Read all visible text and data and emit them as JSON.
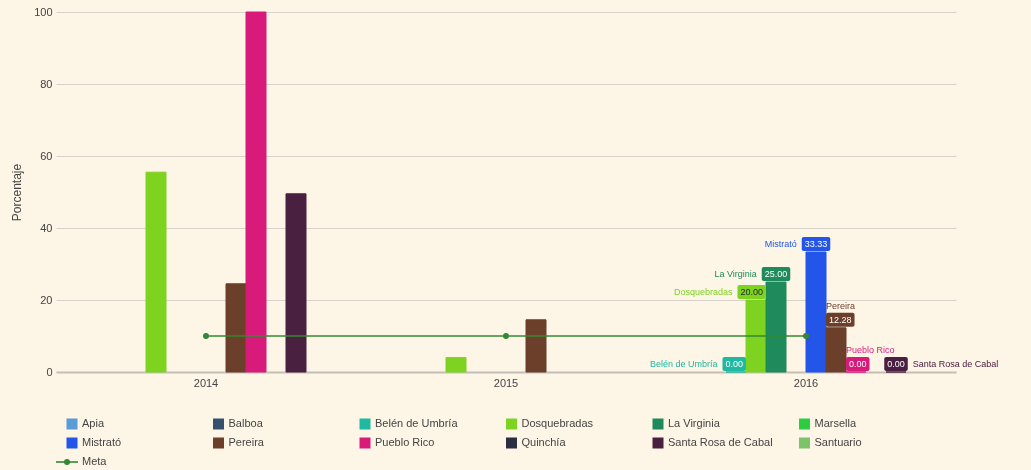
{
  "chart_data": {
    "type": "bar",
    "ylabel": "Porcentaje",
    "categories": [
      "2014",
      "2015",
      "2016"
    ],
    "series": [
      {
        "name": "Apia",
        "color": "#5b9bd5",
        "values": [
          null,
          null,
          null
        ]
      },
      {
        "name": "Balboa",
        "color": "#34506e",
        "values": [
          null,
          null,
          null
        ]
      },
      {
        "name": "Belén de Umbría",
        "color": "#1fb8a0",
        "values": [
          null,
          null,
          0
        ],
        "value_labels": [
          null,
          null,
          "0.00"
        ]
      },
      {
        "name": "Dosquebradas",
        "color": "#7ed321",
        "values": [
          55.5,
          4,
          20
        ],
        "value_labels": [
          null,
          null,
          "20.00"
        ]
      },
      {
        "name": "La Virginia",
        "color": "#1f8a5b",
        "values": [
          null,
          null,
          25
        ],
        "value_labels": [
          null,
          null,
          "25.00"
        ]
      },
      {
        "name": "Marsella",
        "color": "#2ecc40",
        "values": [
          null,
          null,
          null
        ]
      },
      {
        "name": "Mistrató",
        "color": "#2255e8",
        "values": [
          null,
          null,
          33.33
        ],
        "value_labels": [
          null,
          null,
          "33.33"
        ]
      },
      {
        "name": "Pereira",
        "color": "#6b3f2a",
        "values": [
          24.5,
          14.5,
          12.28
        ],
        "value_labels": [
          null,
          null,
          "12.28"
        ]
      },
      {
        "name": "Pueblo Rico",
        "color": "#d81b7a",
        "values": [
          100,
          null,
          0
        ],
        "value_labels": [
          null,
          null,
          "0.00"
        ]
      },
      {
        "name": "Quinchía",
        "color": "#2b2d42",
        "values": [
          null,
          null,
          null
        ]
      },
      {
        "name": "Santa Rosa de Cabal",
        "color": "#4a2040",
        "values": [
          49.5,
          null,
          0
        ],
        "value_labels": [
          null,
          null,
          "0.00"
        ]
      },
      {
        "name": "Santuario",
        "color": "#7cc36a",
        "values": [
          null,
          null,
          null
        ]
      },
      {
        "name": "Meta",
        "type": "line",
        "color": "#338833",
        "values": [
          10,
          10,
          10
        ]
      }
    ],
    "ylim": [
      0,
      100
    ],
    "yticks": [
      0,
      20,
      40,
      60,
      80,
      100
    ],
    "grid": "y",
    "legend": "bottom",
    "marker": "circle"
  }
}
